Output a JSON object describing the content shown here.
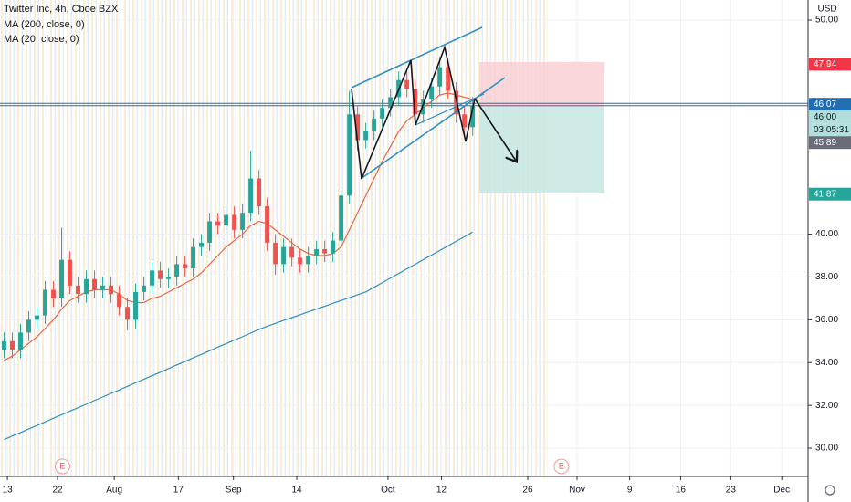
{
  "chart_data": {
    "type": "candlestick",
    "title": "Twitter Inc, 4h, Cboe BZX",
    "currency": "USD",
    "up_color": "#26a69a",
    "down_color": "#ef5350",
    "open": [
      34.6,
      35.0,
      34.6,
      35.4,
      36.0,
      36.2,
      37.4,
      37.0,
      38.8,
      37.6,
      37.2,
      37.9,
      37.4,
      37.6,
      37.2,
      36.6,
      36.0,
      37.3,
      37.6,
      38.3,
      37.9,
      38.0,
      38.6,
      38.4,
      39.4,
      39.6,
      40.6,
      40.4,
      40.9,
      40.2,
      41.0,
      42.6,
      41.3,
      39.6,
      38.6,
      39.4,
      38.9,
      38.6,
      39.0,
      39.3,
      39.1,
      39.7,
      41.8,
      45.6,
      44.4,
      44.8,
      45.4,
      45.9,
      46.4,
      47.2,
      46.8,
      45.6,
      46.3,
      46.9,
      47.8,
      46.7,
      45.6,
      45.0
    ],
    "high": [
      35.4,
      35.4,
      35.8,
      36.4,
      36.6,
      37.8,
      37.8,
      40.3,
      39.2,
      38.0,
      38.3,
      38.3,
      38.0,
      38.0,
      37.6,
      37.0,
      37.7,
      38.0,
      38.7,
      38.7,
      38.4,
      39.0,
      39.0,
      39.8,
      40.0,
      41.0,
      41.0,
      41.3,
      41.3,
      41.4,
      43.9,
      43.0,
      41.7,
      40.0,
      39.8,
      39.8,
      39.3,
      39.4,
      39.7,
      39.7,
      40.1,
      42.2,
      46.7,
      46.0,
      45.2,
      45.8,
      46.3,
      46.8,
      47.6,
      47.6,
      47.2,
      46.7,
      47.3,
      48.3,
      48.2,
      47.1,
      46.0,
      46.4
    ],
    "low": [
      34.2,
      34.2,
      34.2,
      35.0,
      35.6,
      35.8,
      36.6,
      36.6,
      37.2,
      36.8,
      36.8,
      37.0,
      37.0,
      36.8,
      36.2,
      35.5,
      35.6,
      36.9,
      37.2,
      37.5,
      37.5,
      37.6,
      38.0,
      38.0,
      39.0,
      39.2,
      40.0,
      40.0,
      39.8,
      39.8,
      40.6,
      40.9,
      39.2,
      38.1,
      38.2,
      38.5,
      38.2,
      38.2,
      38.6,
      38.7,
      38.7,
      39.3,
      41.4,
      43.9,
      44.0,
      44.4,
      45.0,
      45.5,
      46.0,
      46.4,
      45.2,
      45.2,
      45.9,
      46.5,
      46.3,
      45.2,
      44.6,
      44.6
    ],
    "close": [
      35.0,
      34.6,
      35.4,
      36.0,
      36.2,
      37.4,
      37.0,
      38.8,
      37.6,
      37.2,
      37.9,
      37.4,
      37.6,
      37.2,
      36.6,
      36.0,
      37.3,
      37.6,
      38.3,
      37.9,
      38.0,
      38.6,
      38.4,
      39.4,
      39.6,
      40.6,
      40.4,
      40.9,
      40.2,
      41.0,
      42.6,
      41.3,
      39.6,
      38.6,
      39.4,
      38.9,
      38.6,
      39.0,
      39.3,
      39.1,
      39.7,
      41.8,
      45.6,
      44.4,
      44.8,
      45.4,
      45.9,
      46.4,
      47.2,
      46.8,
      45.6,
      46.3,
      46.9,
      47.8,
      46.7,
      45.6,
      45.0,
      46.0
    ],
    "series": [
      {
        "name": "MA (200, close, 0)",
        "color": "#2f8fc4",
        "values": [
          30.4,
          30.57,
          30.73,
          30.9,
          31.06,
          31.23,
          31.4,
          31.56,
          31.73,
          31.89,
          32.06,
          32.23,
          32.39,
          32.56,
          32.72,
          32.89,
          33.06,
          33.22,
          33.39,
          33.55,
          33.72,
          33.89,
          34.05,
          34.22,
          34.38,
          34.55,
          34.72,
          34.88,
          35.05,
          35.21,
          35.38,
          35.55,
          35.7,
          35.83,
          35.97,
          36.1,
          36.23,
          36.37,
          36.5,
          36.63,
          36.77,
          36.9,
          37.03,
          37.17,
          37.3,
          37.52,
          37.73,
          37.95,
          38.16,
          38.38,
          38.59,
          38.81,
          39.02,
          39.24,
          39.45,
          39.67,
          39.88,
          40.1
        ]
      },
      {
        "name": "MA (20, close, 0)",
        "color": "#f0643c",
        "values": [
          34.1,
          34.3,
          34.6,
          34.9,
          35.2,
          35.6,
          36.0,
          36.5,
          36.9,
          37.1,
          37.3,
          37.4,
          37.4,
          37.4,
          37.2,
          36.9,
          36.8,
          36.8,
          37.0,
          37.1,
          37.3,
          37.5,
          37.7,
          37.9,
          38.2,
          38.6,
          39.0,
          39.4,
          39.7,
          40.0,
          40.4,
          40.6,
          40.5,
          40.2,
          39.9,
          39.6,
          39.3,
          39.1,
          39.0,
          39.0,
          39.1,
          39.4,
          40.2,
          41.0,
          41.8,
          42.6,
          43.4,
          44.1,
          44.8,
          45.3,
          45.6,
          45.9,
          46.2,
          46.5,
          46.6,
          46.5,
          46.4,
          46.3
        ]
      }
    ],
    "xlim": [
      -0.5,
      97.8
    ],
    "xticks": [
      {
        "value": 0.4,
        "label": "13"
      },
      {
        "value": 6.5,
        "label": "22"
      },
      {
        "value": 13.4,
        "label": "Aug"
      },
      {
        "value": 21.2,
        "label": "17"
      },
      {
        "value": 27.9,
        "label": "Sep"
      },
      {
        "value": 35.6,
        "label": "14"
      },
      {
        "value": 46.7,
        "label": "Oct"
      },
      {
        "value": 53.2,
        "label": "12"
      },
      {
        "value": 63.7,
        "label": "26"
      },
      {
        "value": 69.7,
        "label": "Nov"
      },
      {
        "value": 76.1,
        "label": "9"
      },
      {
        "value": 82.3,
        "label": "16"
      },
      {
        "value": 88.4,
        "label": "23"
      },
      {
        "value": 94.6,
        "label": "Dec"
      }
    ],
    "ylim": [
      28.68,
      50.94
    ],
    "yticks": [
      {
        "value": 50,
        "label": "50.00"
      },
      {
        "value": 40,
        "label": "40.00"
      },
      {
        "value": 38,
        "label": "38.00"
      },
      {
        "value": 36,
        "label": "36.00"
      },
      {
        "value": 34,
        "label": "34.00"
      },
      {
        "value": 32,
        "label": "32.00"
      },
      {
        "value": 30,
        "label": "30.00"
      }
    ],
    "grid": true,
    "price_line": {
      "value": 46.07,
      "color": "#1f6fb2"
    },
    "price_labels": [
      {
        "value": 47.94,
        "label": "47.94",
        "color": "#f23645",
        "text_color": "#ffffff"
      },
      {
        "value": 46.07,
        "label": "46.07",
        "color": "#1f6fb2",
        "text_color": "#ffffff"
      },
      {
        "value": 46.0,
        "label": "46.00",
        "color": "#b2dfdb",
        "text_color": "#131722"
      },
      {
        "label": "03:05:31",
        "color": "#b2dfdb",
        "text_color": "#131722"
      },
      {
        "value": 45.89,
        "label": "45.89",
        "color": "#6a6d78",
        "text_color": "#ffffff"
      },
      {
        "value": 41.87,
        "label": "41.87",
        "color": "#26a69a",
        "text_color": "#ffffff"
      }
    ],
    "events": [
      {
        "x": 7.1,
        "label": "E"
      },
      {
        "x": 67.8,
        "label": "E"
      }
    ]
  }
}
